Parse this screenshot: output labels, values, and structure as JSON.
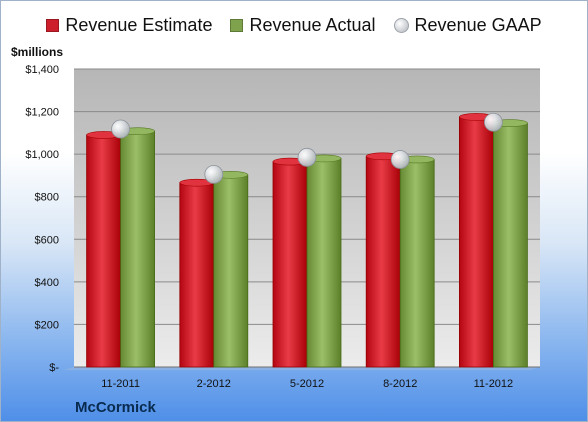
{
  "chart_data": {
    "type": "bar",
    "title": "",
    "subtitle": "",
    "xlabel": "",
    "ylabel": "$millions",
    "footer_label": "McCormick",
    "categories": [
      "11-2011",
      "2-2012",
      "5-2012",
      "8-2012",
      "11-2012"
    ],
    "ylim": [
      0,
      1400
    ],
    "yticks": [
      0,
      200,
      400,
      600,
      800,
      1000,
      1200,
      1400
    ],
    "ytick_labels": [
      "$-",
      "$200",
      "$400",
      "$600",
      "$800",
      "$1,000",
      "$1,200",
      "$1,400"
    ],
    "grid": true,
    "legend_position": "top",
    "series": [
      {
        "name": "Revenue Estimate",
        "type": "bar",
        "color": "#cc1f2b",
        "values": [
          1090,
          866,
          965,
          990,
          1175
        ]
      },
      {
        "name": "Revenue Actual",
        "type": "bar",
        "color": "#7fa24c",
        "values": [
          1108,
          903,
          980,
          975,
          1146
        ]
      },
      {
        "name": "Revenue GAAP",
        "type": "scatter",
        "color": "#c8ccd1",
        "values": [
          1118,
          905,
          985,
          975,
          1150
        ]
      }
    ]
  }
}
